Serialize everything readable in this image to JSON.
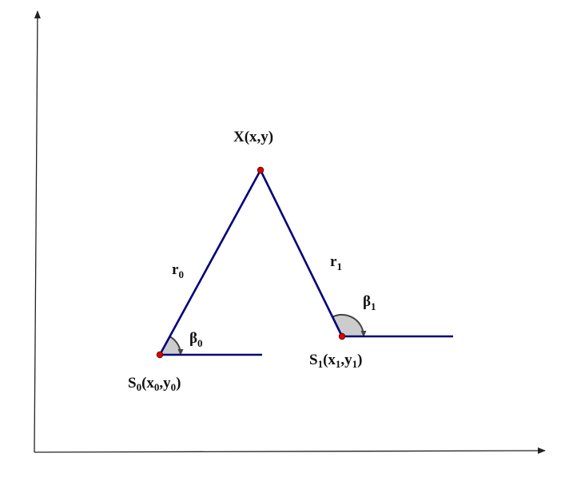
{
  "colors": {
    "line": "#00007a",
    "point": "#e00000",
    "axis": "#222222",
    "arc_fill": "#cccccc",
    "arc_stroke": "#444444"
  },
  "labels": {
    "target": {
      "text": "X(x,y)"
    },
    "r0": {
      "main": "r",
      "sub": "0"
    },
    "r1": {
      "main": "r",
      "sub": "1"
    },
    "beta0": {
      "main": "β",
      "sub": "0"
    },
    "beta1": {
      "main": "β",
      "sub": "1"
    },
    "s0": {
      "p1": "S",
      "s1": "0",
      "p2": "(x",
      "s2": "0",
      "p3": ",y",
      "s3": "0",
      "p4": ")"
    },
    "s1": {
      "p1": "S",
      "s1": "1",
      "p2": "(x",
      "s2": "1",
      "p3": ",y",
      "s3": "1",
      "p4": ")"
    }
  }
}
